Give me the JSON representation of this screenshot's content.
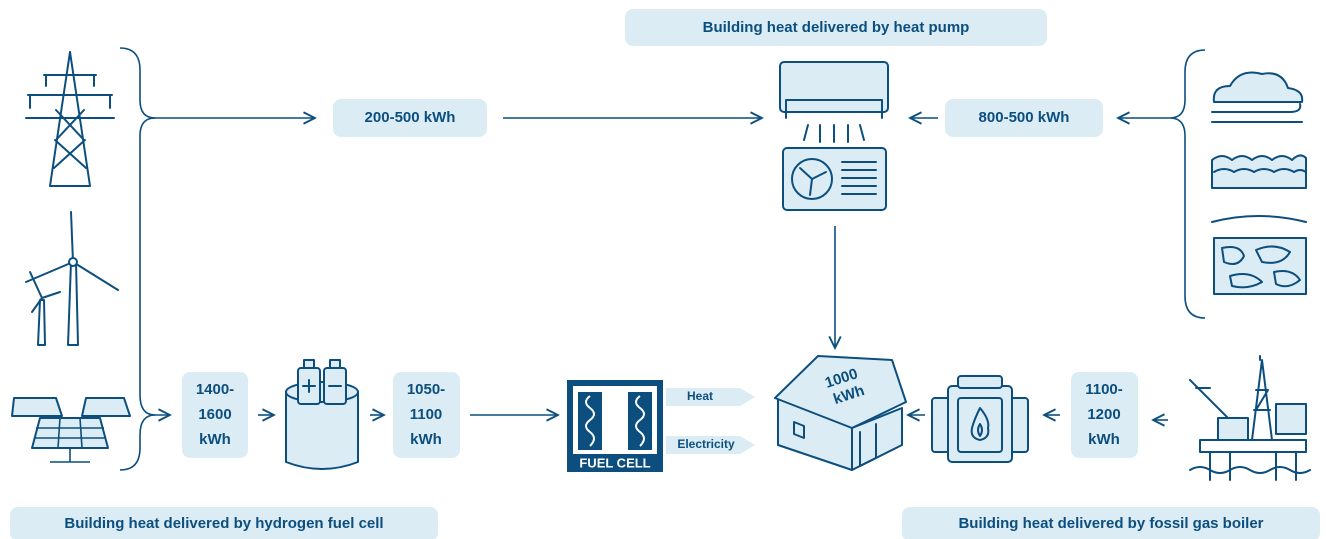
{
  "heat_pump": {
    "title": "Building heat delivered by heat pump",
    "input_label": "200-500 kWh",
    "ambient_label": "800-500 kWh"
  },
  "hydrogen": {
    "title": "Building heat delivered by hydrogen fuel cell",
    "electrolysis_input": [
      "1400-",
      "1600",
      "kWh"
    ],
    "hydrogen_output": [
      "1050-",
      "1100",
      "kWh"
    ],
    "fuel_cell": "FUEL CELL",
    "heat": "Heat",
    "electricity": "Electricity"
  },
  "house": {
    "label": [
      "1000",
      "kWh"
    ]
  },
  "gas_boiler": {
    "title": "Building heat delivered by fossil gas boiler",
    "input_label": [
      "1100-",
      "1200",
      "kWh"
    ]
  }
}
